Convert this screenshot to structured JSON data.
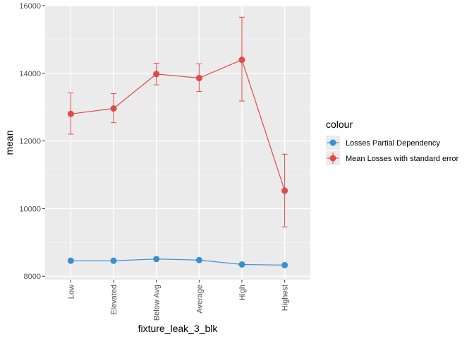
{
  "chart_data": {
    "type": "line",
    "xlabel": "fixture_leak_3_blk",
    "ylabel": "mean",
    "categories": [
      "Low",
      "Elevated",
      "Below Avg",
      "Average",
      "High",
      "Highest"
    ],
    "ylim": [
      8000,
      16000
    ],
    "y_ticks": [
      8000,
      10000,
      12000,
      14000,
      16000
    ],
    "grid": true,
    "legend": {
      "title": "colour",
      "position": "right"
    },
    "series": [
      {
        "name": "Losses Partial Dependency",
        "color": "#3a8fd0",
        "values": [
          8460,
          8460,
          8510,
          8480,
          8350,
          8330
        ]
      },
      {
        "name": "Mean Losses with standard error",
        "color": "#e04a47",
        "values": [
          12800,
          12960,
          13980,
          13860,
          14400,
          10530
        ],
        "error_low": [
          12200,
          12540,
          13660,
          13460,
          13180,
          9460
        ],
        "error_high": [
          13420,
          13400,
          14300,
          14280,
          15660,
          11610
        ]
      }
    ]
  }
}
